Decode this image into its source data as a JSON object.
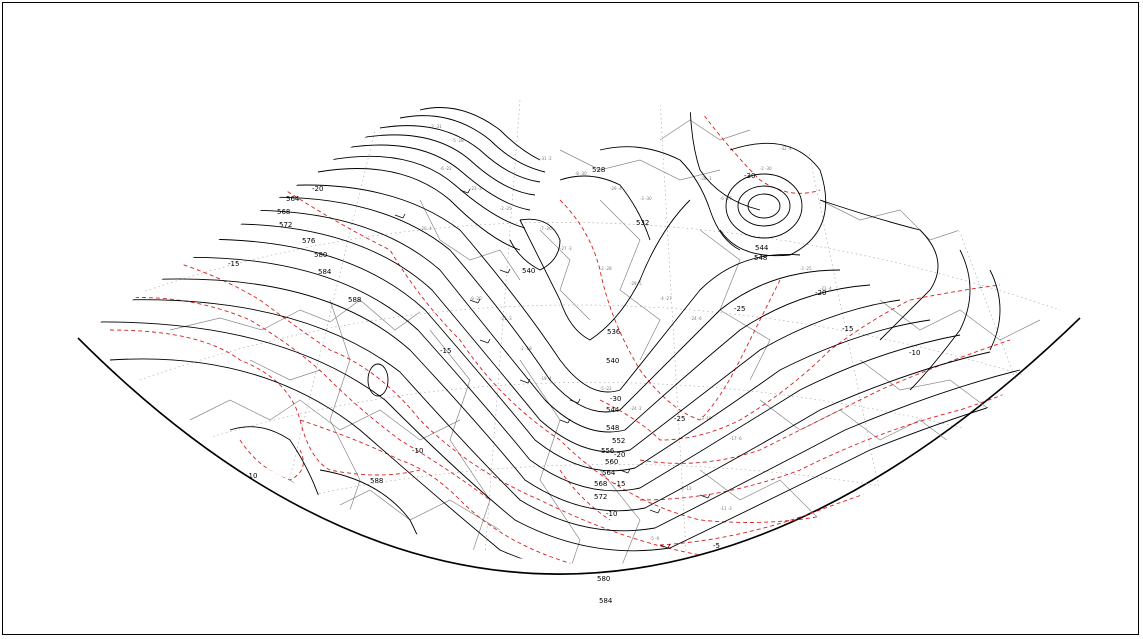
{
  "colors": {
    "height_contour": "#000000",
    "temperature_contour": "#d62020",
    "coastline": "#8a8a8a",
    "graticule": "#9a9a9a",
    "station_plot": "#666666"
  },
  "height_labels": [
    "564",
    "568",
    "572",
    "576",
    "580",
    "584",
    "588",
    "528",
    "532",
    "540",
    "536",
    "544",
    "548",
    "552",
    "556",
    "560",
    "564",
    "568",
    "572",
    "580",
    "584",
    "588"
  ],
  "temperature_labels": [
    "-20",
    "-15",
    "-15",
    "-10",
    "-10",
    "-30",
    "-25",
    "-20",
    "-15",
    "-10",
    "-30",
    "-25",
    "-20",
    "-15",
    "-10",
    "-5"
  ]
}
